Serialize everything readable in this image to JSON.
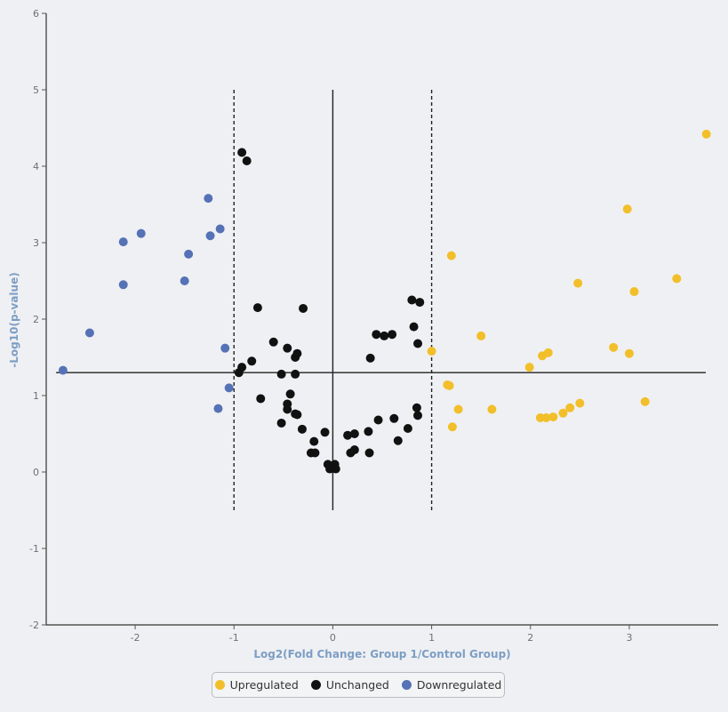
{
  "chart_data": {
    "type": "scatter",
    "title": "",
    "xlabel": "Log2(Fold Change: Group 1/Control Group)",
    "ylabel": "-Log10(p-value)",
    "xlim": [
      -2.9,
      3.9
    ],
    "ylim": [
      -2,
      6
    ],
    "x_ticks": [
      -2,
      -1,
      0,
      1,
      2,
      3
    ],
    "y_ticks": [
      -2,
      -1,
      0,
      1,
      2,
      3,
      4,
      5,
      6
    ],
    "grid": false,
    "legend_position": "bottom-center",
    "reference_lines": {
      "horizontal": [
        {
          "y": 1.3,
          "style": "solid"
        }
      ],
      "vertical": [
        {
          "x": -1,
          "style": "dashed",
          "y_range": [
            -0.5,
            5
          ]
        },
        {
          "x": 0,
          "style": "solid",
          "y_range": [
            -0.5,
            5
          ]
        },
        {
          "x": 1,
          "style": "dashed",
          "y_range": [
            -0.5,
            5
          ]
        }
      ]
    },
    "series": [
      {
        "name": "Upregulated",
        "color": "#f2bf2a",
        "points": [
          [
            3.78,
            4.42
          ],
          [
            2.98,
            3.44
          ],
          [
            1.2,
            2.83
          ],
          [
            3.48,
            2.53
          ],
          [
            2.48,
            2.47
          ],
          [
            3.05,
            2.36
          ],
          [
            1.5,
            1.78
          ],
          [
            2.84,
            1.63
          ],
          [
            1.0,
            1.58
          ],
          [
            2.18,
            1.56
          ],
          [
            2.12,
            1.52
          ],
          [
            3.0,
            1.55
          ],
          [
            1.99,
            1.37
          ],
          [
            1.18,
            1.13
          ],
          [
            1.16,
            1.14
          ],
          [
            3.16,
            0.92
          ],
          [
            2.5,
            0.9
          ],
          [
            2.4,
            0.84
          ],
          [
            1.27,
            0.82
          ],
          [
            1.61,
            0.82
          ],
          [
            2.33,
            0.77
          ],
          [
            2.23,
            0.72
          ],
          [
            2.16,
            0.71
          ],
          [
            2.1,
            0.71
          ],
          [
            1.21,
            0.59
          ]
        ]
      },
      {
        "name": "Unchanged",
        "color": "#111111",
        "points": [
          [
            -0.92,
            4.18
          ],
          [
            -0.87,
            4.07
          ],
          [
            -0.76,
            2.15
          ],
          [
            -0.3,
            2.14
          ],
          [
            0.8,
            2.25
          ],
          [
            0.88,
            2.22
          ],
          [
            0.82,
            1.9
          ],
          [
            0.44,
            1.8
          ],
          [
            0.52,
            1.78
          ],
          [
            0.6,
            1.8
          ],
          [
            0.86,
            1.68
          ],
          [
            -0.6,
            1.7
          ],
          [
            -0.46,
            1.62
          ],
          [
            -0.36,
            1.55
          ],
          [
            -0.38,
            1.5
          ],
          [
            0.38,
            1.49
          ],
          [
            -0.82,
            1.45
          ],
          [
            -0.92,
            1.37
          ],
          [
            -0.95,
            1.3
          ],
          [
            -0.52,
            1.28
          ],
          [
            -0.38,
            1.28
          ],
          [
            -0.43,
            1.02
          ],
          [
            -0.73,
            0.96
          ],
          [
            -0.46,
            0.89
          ],
          [
            -0.46,
            0.82
          ],
          [
            0.85,
            0.84
          ],
          [
            -0.38,
            0.76
          ],
          [
            -0.36,
            0.75
          ],
          [
            0.86,
            0.74
          ],
          [
            0.62,
            0.7
          ],
          [
            0.46,
            0.68
          ],
          [
            -0.52,
            0.64
          ],
          [
            -0.31,
            0.56
          ],
          [
            0.76,
            0.57
          ],
          [
            0.36,
            0.53
          ],
          [
            -0.08,
            0.52
          ],
          [
            0.22,
            0.5
          ],
          [
            0.15,
            0.48
          ],
          [
            0.66,
            0.41
          ],
          [
            -0.19,
            0.4
          ],
          [
            0.22,
            0.29
          ],
          [
            0.18,
            0.25
          ],
          [
            0.37,
            0.25
          ],
          [
            -0.22,
            0.25
          ],
          [
            -0.18,
            0.25
          ],
          [
            -0.05,
            0.1
          ],
          [
            0.02,
            0.1
          ],
          [
            -0.02,
            0.06
          ],
          [
            0.03,
            0.04
          ],
          [
            -0.03,
            0.04
          ]
        ]
      },
      {
        "name": "Downregulated",
        "color": "#5572b7",
        "points": [
          [
            -1.26,
            3.58
          ],
          [
            -1.14,
            3.18
          ],
          [
            -1.94,
            3.12
          ],
          [
            -1.24,
            3.09
          ],
          [
            -2.12,
            3.01
          ],
          [
            -1.46,
            2.85
          ],
          [
            -1.5,
            2.5
          ],
          [
            -2.12,
            2.45
          ],
          [
            -2.46,
            1.82
          ],
          [
            -1.09,
            1.62
          ],
          [
            -2.73,
            1.33
          ],
          [
            -1.05,
            1.1
          ],
          [
            -1.16,
            0.83
          ]
        ]
      }
    ]
  }
}
